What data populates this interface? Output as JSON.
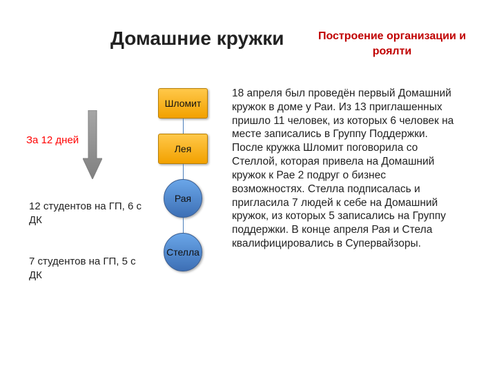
{
  "title": "Домашние кружки",
  "subtitle": "Построение организации и роялти",
  "arrow": {
    "label": "За 12 дней",
    "label_color": "#ff0000",
    "fill_top": "#a6a6a6",
    "fill_bottom": "#808080",
    "stroke": "#7f7f7f"
  },
  "stats": {
    "line1": "12 студентов на ГП, 6 с ДК",
    "line2": "7 студентов на ГП, 5 с ДК",
    "color": "#222222",
    "fontsize": 15
  },
  "chain": {
    "edge_color": "#4a7ebb",
    "edge_length": 22,
    "nodes": [
      {
        "label": "Шломит",
        "shape": "box",
        "fill_top": "#ffc84a",
        "fill_bottom": "#f2a100",
        "border": "#b77d00"
      },
      {
        "label": "Лея",
        "shape": "box",
        "fill_top": "#ffc84a",
        "fill_bottom": "#f2a100",
        "border": "#b77d00"
      },
      {
        "label": "Рая",
        "shape": "circle",
        "fill_top": "#6aa6e8",
        "fill_bottom": "#3d6fb5",
        "border": "#3c5e90"
      },
      {
        "label": "Стелла",
        "shape": "circle",
        "fill_top": "#6aa6e8",
        "fill_bottom": "#3d6fb5",
        "border": "#3c5e90"
      }
    ]
  },
  "body_text": " 18 апреля был проведён первый Домашний кружок в доме у Раи. Из 13 приглашенных пришло 11 человек, из которых 6 человек на месте записались в Группу Поддержки. После кружка Шломит поговорила со Стеллой, которая привела на Домашний кружок к Рае 2 подруг о бизнес возможностях. Стелла подписалась и пригласила 7 людей к себе на Домашний кружок, из которых 5 записались на Группу поддержки. В конце апреля Рая и Стела квалифицировались в Супервайзоры.",
  "typography": {
    "title_fontsize": 28,
    "title_color": "#222222",
    "subtitle_fontsize": 16,
    "subtitle_color": "#c00000",
    "body_fontsize": 15.5,
    "body_color": "#222222",
    "background_color": "#ffffff"
  }
}
